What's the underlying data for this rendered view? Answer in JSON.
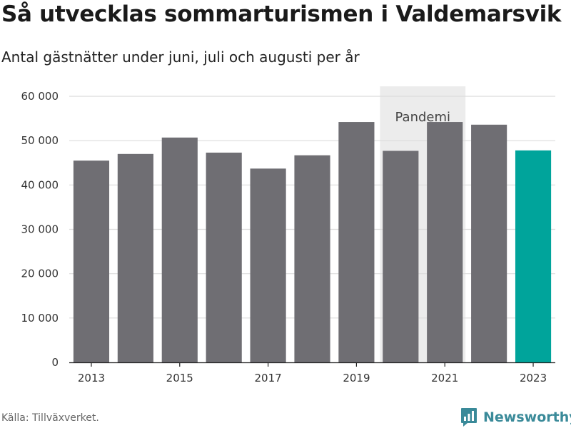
{
  "chart_data": {
    "type": "bar",
    "title": "Så utvecklas sommarturismen i Valdemarsvik",
    "subtitle": "Antal gästnätter under juni, juli och augusti per år",
    "categories": [
      "2013",
      "2014",
      "2015",
      "2016",
      "2017",
      "2018",
      "2019",
      "2020",
      "2021",
      "2022",
      "2023"
    ],
    "values": [
      45500,
      47000,
      50700,
      47300,
      43700,
      46700,
      54200,
      47700,
      54200,
      53600,
      47800
    ],
    "highlight_category": "2023",
    "colors": {
      "bar": "#6f6e73",
      "highlight": "#00a49b",
      "shade": "#ececec",
      "grid": "#dcdcdc",
      "text": "#333333"
    },
    "ylim": [
      0,
      60000
    ],
    "yticks": [
      0,
      10000,
      20000,
      30000,
      40000,
      50000,
      60000
    ],
    "ytick_labels": [
      "0",
      "10 000",
      "20 000",
      "30 000",
      "40 000",
      "50 000",
      "60 000"
    ],
    "xtick_labels": [
      "2013",
      "2015",
      "2017",
      "2019",
      "2021",
      "2023"
    ],
    "annotation": {
      "label": "Pandemi",
      "from": "2020",
      "to": "2021"
    },
    "grid": true,
    "legend": "none"
  },
  "footer": {
    "source": "Källa: Tillväxverket.",
    "brand": "Newsworthy",
    "brand_icon": "chart-logo-icon"
  }
}
